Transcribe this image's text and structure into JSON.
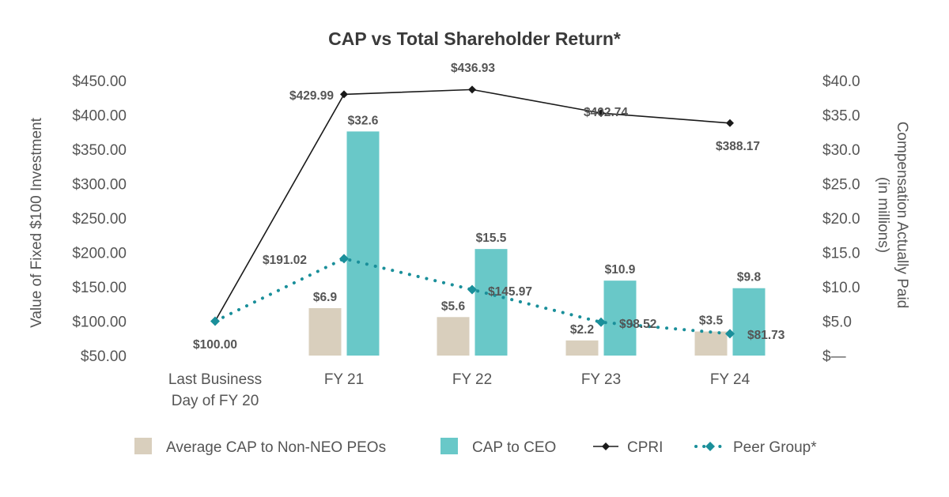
{
  "chart_data": {
    "type": "bar",
    "title": "CAP vs Total Shareholder Return*",
    "categories": [
      "Last Business Day of FY 20",
      "FY 21",
      "FY 22",
      "FY 23",
      "FY 24"
    ],
    "category_lines": [
      [
        "Last Business",
        "Day of FY 20"
      ],
      [
        "FY 21"
      ],
      [
        "FY 22"
      ],
      [
        "FY 23"
      ],
      [
        "FY 24"
      ]
    ],
    "ylabel_left": "Value of Fixed $100 Investment",
    "ylabel_right_lines": [
      "Compensation Actually Paid",
      "(in millions)"
    ],
    "left_ylim": [
      50,
      450
    ],
    "left_ticks": [
      "$450.00",
      "$400.00",
      "$350.00",
      "$300.00",
      "$250.00",
      "$200.00",
      "$150.00",
      "$100.00",
      "$50.00"
    ],
    "left_tick_values": [
      450,
      400,
      350,
      300,
      250,
      200,
      150,
      100,
      50
    ],
    "right_ylim": [
      0,
      40
    ],
    "right_ticks": [
      "$40.0",
      "$35.0",
      "$30.0",
      "$25.0",
      "$20.0",
      "$15.0",
      "$10.0",
      "$5.0",
      "$—"
    ],
    "right_tick_values": [
      40,
      35,
      30,
      25,
      20,
      15,
      10,
      5,
      0
    ],
    "series": [
      {
        "name": "Average CAP to Non-NEO PEOs",
        "type": "bar",
        "axis": "right",
        "color": "#d9cfbd",
        "values": [
          null,
          6.9,
          5.6,
          2.2,
          3.5
        ],
        "labels": [
          "",
          "$6.9",
          "$5.6",
          "$2.2",
          "$3.5"
        ]
      },
      {
        "name": "CAP to CEO",
        "type": "bar",
        "axis": "right",
        "color": "#69c8c8",
        "values": [
          null,
          32.6,
          15.5,
          10.9,
          9.8
        ],
        "labels": [
          "",
          "$32.6",
          "$15.5",
          "$10.9",
          "$9.8"
        ]
      },
      {
        "name": "CPRI",
        "type": "line",
        "axis": "left",
        "color": "#1a1a1a",
        "values": [
          100.0,
          429.99,
          436.93,
          402.74,
          388.17
        ],
        "labels": [
          "$100.00",
          "$429.99",
          "$436.93",
          "$402.74",
          "$388.17"
        ]
      },
      {
        "name": "Peer Group*",
        "type": "line",
        "axis": "left",
        "color": "#1a8f9a",
        "values": [
          100.0,
          191.02,
          145.97,
          98.52,
          81.73
        ],
        "labels": [
          "",
          "$191.02",
          "$145.97",
          "$98.52",
          "$81.73"
        ]
      }
    ],
    "legend": [
      {
        "name": "Average CAP to Non-NEO PEOs",
        "marker": "bar",
        "color": "#d9cfbd"
      },
      {
        "name": "CAP to CEO",
        "marker": "bar",
        "color": "#69c8c8"
      },
      {
        "name": "CPRI",
        "marker": "line-diamond",
        "color": "#1a1a1a"
      },
      {
        "name": "Peer Group*",
        "marker": "dotted-diamond",
        "color": "#1a8f9a"
      }
    ],
    "legend_position": "bottom"
  }
}
